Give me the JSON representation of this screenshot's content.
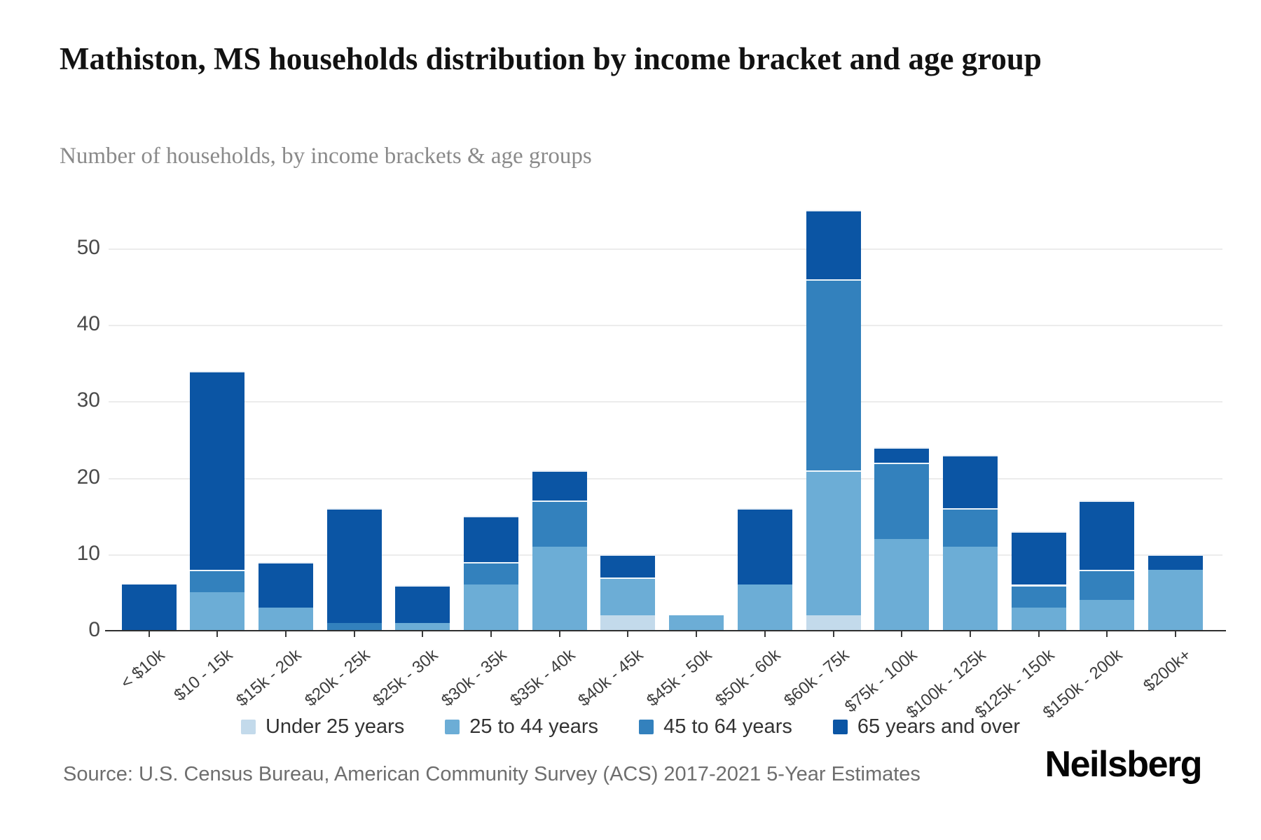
{
  "header": {
    "title": "Mathiston, MS households distribution by income bracket and age group",
    "subtitle": "Number of households, by income brackets & age groups"
  },
  "chart_data": {
    "type": "bar",
    "stacked": true,
    "title": "Mathiston, MS households distribution by income bracket and age group",
    "xlabel": "",
    "ylabel": "Number of households",
    "ylim": [
      0,
      55
    ],
    "yticks": [
      0,
      10,
      20,
      30,
      40,
      50
    ],
    "grid": true,
    "legend_position": "bottom",
    "categories": [
      "< $10k",
      "$10 - 15k",
      "$15k - 20k",
      "$20k - 25k",
      "$25k - 30k",
      "$30k - 35k",
      "$35k - 40k",
      "$40k - 45k",
      "$45k - 50k",
      "$50k - 60k",
      "$60k - 75k",
      "$75k - 100k",
      "$100k - 125k",
      "$125k - 150k",
      "$150k - 200k",
      "$200k+"
    ],
    "series": [
      {
        "name": "Under 25 years",
        "color": "#c3daeb",
        "values": [
          0,
          0,
          0,
          0,
          0,
          0,
          0,
          2,
          0,
          0,
          2,
          0,
          0,
          0,
          0,
          0
        ]
      },
      {
        "name": "25 to 44 years",
        "color": "#6cadd6",
        "values": [
          0,
          5,
          3,
          0,
          1,
          6,
          11,
          5,
          2,
          6,
          19,
          12,
          11,
          3,
          4,
          8
        ]
      },
      {
        "name": "45 to 64 years",
        "color": "#3381bd",
        "values": [
          0,
          3,
          0,
          1,
          0,
          3,
          6,
          0,
          0,
          0,
          25,
          10,
          5,
          3,
          4,
          0
        ]
      },
      {
        "name": "65 years and over",
        "color": "#0b55a4",
        "values": [
          6,
          26,
          6,
          15,
          5,
          6,
          4,
          3,
          0,
          10,
          9,
          2,
          7,
          7,
          9,
          2
        ]
      }
    ],
    "totals": [
      6,
      34,
      9,
      16,
      6,
      15,
      21,
      10,
      2,
      16,
      55,
      24,
      23,
      13,
      17,
      10
    ]
  },
  "footer": {
    "source": "Source: U.S. Census Bureau, American Community Survey (ACS) 2017-2021 5-Year Estimates",
    "brand": "Neilsberg"
  }
}
